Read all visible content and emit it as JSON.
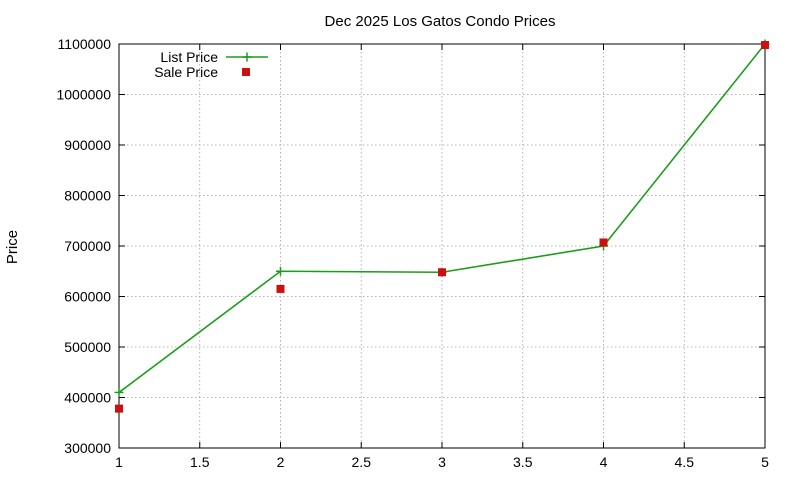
{
  "chart_data": {
    "type": "line",
    "title": "Dec 2025 Los Gatos Condo Prices",
    "xlabel": "",
    "ylabel": "Price",
    "xlim": [
      1,
      5
    ],
    "ylim": [
      300000,
      1100000
    ],
    "x_ticks": [
      "1",
      "1.5",
      "2",
      "2.5",
      "3",
      "3.5",
      "4",
      "4.5",
      "5"
    ],
    "y_ticks": [
      "300000",
      "400000",
      "500000",
      "600000",
      "700000",
      "800000",
      "900000",
      "1000000",
      "1100000"
    ],
    "grid": true,
    "legend_position": "top-left",
    "series": [
      {
        "name": "List Price",
        "style": "line-with-plus-markers",
        "color": "#1a9e1a",
        "x": [
          1,
          2,
          3,
          4,
          5
        ],
        "y": [
          410000,
          650000,
          648000,
          700000,
          1100000
        ]
      },
      {
        "name": "Sale Price",
        "style": "square-markers",
        "color": "#cc1010",
        "x": [
          1,
          2,
          3,
          4,
          5
        ],
        "y": [
          378000,
          615000,
          648000,
          707000,
          1098000
        ]
      }
    ]
  }
}
